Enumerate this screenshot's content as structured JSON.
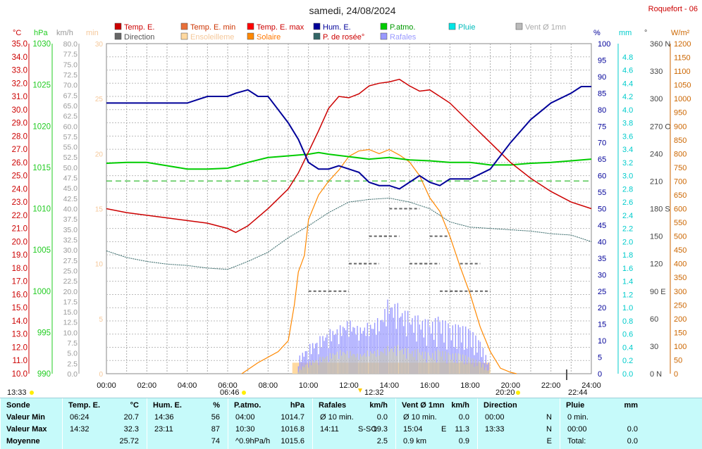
{
  "header": {
    "title": "samedi, 24/08/2024",
    "station": "Roquefort - 06"
  },
  "legend": [
    {
      "label": "Temp. E.",
      "color": "#cc0000",
      "textcolor": "#cc0000"
    },
    {
      "label": "Temp. E. min",
      "color": "#e8703a",
      "textcolor": "#cc3300"
    },
    {
      "label": "Temp. E. max",
      "color": "#ff0000",
      "textcolor": "#cc0000"
    },
    {
      "label": "Hum. E.",
      "color": "#000099",
      "textcolor": "#000099"
    },
    {
      "label": "P.atmo.",
      "color": "#00cc00",
      "textcolor": "#009900"
    },
    {
      "label": "Pluie",
      "color": "#00e5e5",
      "textcolor": "#00bbbb"
    },
    {
      "label": "Vent Ø 1mn",
      "color": "#bbbbbb",
      "textcolor": "#aaaaaa"
    },
    {
      "label": "Direction",
      "color": "#666666",
      "textcolor": "#555555"
    },
    {
      "label": "Ensoleilleme",
      "color": "#ffd9a0",
      "textcolor": "#f5c89a"
    },
    {
      "label": "Solaire",
      "color": "#ff8800",
      "textcolor": "#ff7700"
    },
    {
      "label": "P. de rosée°",
      "color": "#336666",
      "textcolor": "#cc0000"
    },
    {
      "label": "Rafales",
      "color": "#9999ff",
      "textcolor": "#9999ff"
    }
  ],
  "axis_units": {
    "temp": "°C",
    "press": "hPa",
    "wind": "km/h",
    "min": "min",
    "hum": "%",
    "rain": "mm",
    "dir": "°",
    "solar": "W/m²"
  },
  "time_markers": {
    "sunrise_left": "13:33",
    "sunrise": "06:46",
    "noon": "12:32",
    "sunset": "20:20",
    "moon": "22:44"
  },
  "chart_data": {
    "type": "line",
    "title": "samedi, 24/08/2024",
    "x_ticks": [
      "00:00",
      "02:00",
      "04:00",
      "06:00",
      "08:00",
      "10:00",
      "12:00",
      "14:00",
      "16:00",
      "18:00",
      "20:00",
      "22:00",
      "24:00"
    ],
    "axes": {
      "temp_c": {
        "range": [
          10,
          35
        ],
        "ticks": [
          "10.0",
          "11.0",
          "12.0",
          "13.0",
          "14.0",
          "15.0",
          "16.0",
          "17.0",
          "18.0",
          "19.0",
          "20.0",
          "21.0",
          "22.0",
          "23.0",
          "24.0",
          "25.0",
          "26.0",
          "27.0",
          "28.0",
          "29.0",
          "30.0",
          "31.0",
          "32.0",
          "33.0",
          "34.0",
          "35.0"
        ]
      },
      "pressure_hpa": {
        "range": [
          990,
          1030
        ],
        "ticks": [
          "990",
          "995",
          "1000",
          "1005",
          "1010",
          "1015",
          "1020",
          "1025",
          "1030"
        ]
      },
      "wind_kmh": {
        "range": [
          0,
          80
        ],
        "ticks": [
          "0.0",
          "2.5",
          "5.0",
          "7.5",
          "10.0",
          "12.5",
          "15.0",
          "17.5",
          "20.0",
          "22.5",
          "25.0",
          "27.5",
          "30.0",
          "32.5",
          "35.0",
          "37.5",
          "40.0",
          "42.5",
          "45.0",
          "47.5",
          "50.0",
          "52.5",
          "55.0",
          "57.5",
          "60.0",
          "62.5",
          "65.0",
          "67.5",
          "70.0",
          "72.5",
          "75.0",
          "77.5",
          "80.0"
        ]
      },
      "sunshine_min": {
        "range": [
          0,
          30
        ],
        "ticks": [
          "0",
          "5",
          "10",
          "15",
          "20",
          "25",
          "30"
        ]
      },
      "humidity_pct": {
        "range": [
          0,
          100
        ],
        "ticks": [
          "0",
          "5",
          "10",
          "15",
          "20",
          "25",
          "30",
          "35",
          "40",
          "45",
          "50",
          "55",
          "60",
          "65",
          "70",
          "75",
          "80",
          "85",
          "90",
          "95",
          "100"
        ]
      },
      "rain_mm": {
        "range": [
          0,
          5
        ],
        "ticks": [
          "0.0",
          "0.2",
          "0.4",
          "0.6",
          "0.8",
          "1.0",
          "1.2",
          "1.4",
          "1.6",
          "1.8",
          "2.0",
          "2.2",
          "2.4",
          "2.6",
          "2.8",
          "3.0",
          "3.2",
          "3.4",
          "3.6",
          "3.8",
          "4.0",
          "4.2",
          "4.4",
          "4.6",
          "4.8"
        ]
      },
      "direction_deg": {
        "range": [
          0,
          360
        ],
        "ticks": [
          "0 N",
          "30",
          "60",
          "90 E",
          "120",
          "150",
          "180 S",
          "210",
          "240",
          "270 O",
          "300",
          "330",
          "360 N"
        ]
      },
      "solar_wm2": {
        "range": [
          0,
          1200
        ],
        "ticks": [
          "0",
          "50",
          "100",
          "150",
          "200",
          "250",
          "300",
          "350",
          "400",
          "450",
          "500",
          "550",
          "600",
          "650",
          "700",
          "750",
          "800",
          "850",
          "900",
          "950",
          "1000",
          "1050",
          "1100",
          "1150",
          "1200"
        ]
      }
    },
    "series": [
      {
        "name": "Temp. E.",
        "axis": "temp_c",
        "color": "#cc0000",
        "x": [
          0,
          1,
          2,
          3,
          4,
          5,
          6,
          6.4,
          7,
          8,
          9,
          9.5,
          10,
          10.5,
          11,
          11.5,
          12,
          12.5,
          13,
          13.5,
          14,
          14.5,
          15,
          15.5,
          16,
          16.5,
          17,
          18,
          19,
          20,
          21,
          22,
          23,
          24
        ],
        "y": [
          22.5,
          22.2,
          22.0,
          21.8,
          21.6,
          21.4,
          21.0,
          20.7,
          21.2,
          22.5,
          24.0,
          25.2,
          26.8,
          28.4,
          30.1,
          31.0,
          30.9,
          31.2,
          31.8,
          32.0,
          32.1,
          32.3,
          31.8,
          31.4,
          31.5,
          31.0,
          30.5,
          29.0,
          27.5,
          26.0,
          24.8,
          23.8,
          23.0,
          22.5
        ]
      },
      {
        "name": "Hum. E.",
        "axis": "humidity_pct",
        "color": "#000099",
        "x": [
          0,
          1,
          2,
          3,
          4,
          4.5,
          5,
          5.5,
          6,
          6.4,
          7,
          7.5,
          8,
          8.5,
          9,
          9.5,
          10,
          10.5,
          11,
          11.5,
          12,
          12.5,
          13,
          13.5,
          14,
          14.5,
          15,
          15.5,
          16,
          16.5,
          17,
          18,
          19,
          20,
          21,
          22,
          23,
          23.5,
          24
        ],
        "y": [
          82,
          82,
          82,
          82,
          82,
          83,
          84,
          84,
          84,
          85,
          86,
          84,
          84,
          80,
          76,
          71,
          64,
          62,
          62,
          63,
          62,
          61,
          58,
          57,
          57,
          56,
          58,
          60,
          58,
          57,
          59,
          59,
          62,
          70,
          77,
          82,
          85,
          87,
          87
        ]
      },
      {
        "name": "P.atmo.",
        "axis": "pressure_hpa",
        "color": "#00cc00",
        "x": [
          0,
          1,
          2,
          3,
          4,
          5,
          6,
          7,
          8,
          9,
          10,
          10.5,
          11,
          12,
          13,
          14,
          15,
          16,
          17,
          18,
          19,
          20,
          21,
          22,
          23,
          24
        ],
        "y": [
          1015.5,
          1015.6,
          1015.6,
          1015.2,
          1014.8,
          1014.8,
          1014.9,
          1015.6,
          1016.2,
          1016.4,
          1016.6,
          1016.8,
          1016.6,
          1016.3,
          1016.0,
          1016.2,
          1015.9,
          1015.8,
          1015.6,
          1015.6,
          1015.3,
          1015.3,
          1015.5,
          1015.6,
          1015.8,
          1016.0
        ]
      },
      {
        "name": "P. de rosée°",
        "axis": "temp_c",
        "color": "#336666",
        "x": [
          0,
          1,
          2,
          3,
          4,
          5,
          6,
          7,
          8,
          9,
          10,
          11,
          12,
          13,
          14,
          15,
          16,
          17,
          18,
          19,
          20,
          21,
          22,
          23,
          24
        ],
        "y": [
          19.3,
          18.8,
          18.5,
          18.3,
          18.2,
          18.0,
          17.9,
          18.5,
          19.2,
          20.3,
          21.2,
          22.2,
          23.0,
          23.2,
          23.3,
          23.0,
          22.5,
          21.5,
          21.1,
          21.0,
          20.9,
          20.8,
          20.6,
          20.5,
          20.0
        ]
      },
      {
        "name": "Solaire",
        "axis": "solar_wm2",
        "color": "#ff8800",
        "x": [
          6.7,
          7.5,
          8.5,
          9.0,
          9.3,
          9.5,
          9.8,
          10.0,
          10.5,
          11.0,
          11.5,
          12.0,
          12.5,
          13.0,
          13.5,
          14.0,
          14.5,
          15.0,
          15.5,
          16.0,
          16.5,
          17.0,
          17.5,
          18.0,
          18.5,
          19.0,
          19.5,
          20.0,
          20.3
        ],
        "y": [
          0,
          40,
          80,
          120,
          250,
          370,
          430,
          560,
          650,
          700,
          740,
          790,
          810,
          815,
          800,
          815,
          795,
          770,
          720,
          640,
          590,
          500,
          390,
          290,
          170,
          80,
          20,
          5,
          0
        ]
      },
      {
        "name": "Rafales",
        "axis": "wind_kmh",
        "color": "#9999ff",
        "x": [
          9.5,
          10,
          10.5,
          11,
          11.5,
          12,
          12.5,
          13,
          13.5,
          14,
          14.5,
          15,
          15.5,
          16,
          16.5,
          17,
          17.5,
          18,
          18.5,
          19
        ],
        "y": [
          4,
          7,
          9,
          11,
          12,
          14,
          12,
          13,
          14,
          19,
          17,
          15,
          14,
          13,
          14,
          12,
          12,
          11,
          8,
          2
        ]
      },
      {
        "name": "Vent Ø 1mn",
        "axis": "wind_kmh",
        "color": "#bbbbbb",
        "x": [
          9.5,
          10,
          10.5,
          11,
          11.5,
          12,
          12.5,
          13,
          13.5,
          14,
          14.5,
          15,
          15.5,
          16,
          16.5,
          17,
          17.5,
          18,
          18.5,
          19
        ],
        "y": [
          1,
          3,
          4,
          5,
          6,
          6,
          5,
          6,
          6,
          7,
          7,
          6,
          6,
          5,
          6,
          5,
          5,
          4,
          3,
          0.5
        ]
      },
      {
        "name": "Ensoleilleme",
        "axis": "sunshine_min",
        "color": "#ffd9a0",
        "x": [
          9.2,
          19
        ],
        "y": [
          1,
          1
        ]
      },
      {
        "name": "Direction",
        "axis": "direction_deg",
        "color": "#666666",
        "x": [
          10,
          11,
          12,
          12.5,
          13,
          13.5,
          14,
          14.5,
          15,
          15.5,
          16,
          16.5,
          17,
          17.5,
          18
        ],
        "y": [
          90,
          90,
          120,
          120,
          150,
          150,
          180,
          180,
          120,
          120,
          150,
          90,
          90,
          120,
          90
        ]
      }
    ],
    "reference_lines": [
      {
        "axis": "temp_c",
        "y": 24.6,
        "color": "#00aa00",
        "style": "dashed"
      }
    ],
    "grid": true,
    "legend_position": "top"
  },
  "summary": {
    "columns": [
      {
        "title": "Sonde",
        "unit": ""
      },
      {
        "title": "Temp. E.",
        "unit": "°C"
      },
      {
        "title": "Hum. E.",
        "unit": "%"
      },
      {
        "title": "P.atmo.",
        "unit": "hPa"
      },
      {
        "title": "Rafales",
        "unit": "km/h"
      },
      {
        "title": "Vent Ø 1mn",
        "unit": "km/h"
      },
      {
        "title": "Direction",
        "unit": ""
      },
      {
        "title": "Pluie",
        "unit": "mm"
      }
    ],
    "rows": [
      {
        "label": "Valeur Min",
        "temp": [
          "06:24",
          "20.7"
        ],
        "hum": [
          "14:36",
          "56"
        ],
        "press": [
          "04:00",
          "1014.7"
        ],
        "gust": [
          "Ø 10 min.",
          "",
          "0.0"
        ],
        "wind": [
          "Ø 10 min.",
          "",
          "0.0"
        ],
        "dir": [
          "00:00",
          "N"
        ],
        "rain": [
          "0 min.",
          ""
        ]
      },
      {
        "label": "Valeur Max",
        "temp": [
          "14:32",
          "32.3"
        ],
        "hum": [
          "23:11",
          "87"
        ],
        "press": [
          "10:30",
          "1016.8"
        ],
        "gust": [
          "14:11",
          "S-SO",
          "19.3"
        ],
        "wind": [
          "15:04",
          "E",
          "11.3"
        ],
        "dir": [
          "13:33",
          "N"
        ],
        "rain": [
          "00:00",
          "0.0"
        ]
      },
      {
        "label": "Moyenne",
        "temp": [
          "",
          "25.72"
        ],
        "hum": [
          "",
          "74"
        ],
        "press": [
          "^0.9hPa/h",
          "1015.6"
        ],
        "gust": [
          "",
          "",
          "2.5"
        ],
        "wind": [
          "0.9 km",
          "",
          "0.9"
        ],
        "dir": [
          "",
          "E"
        ],
        "rain": [
          "Total:",
          "0.0"
        ]
      }
    ]
  }
}
